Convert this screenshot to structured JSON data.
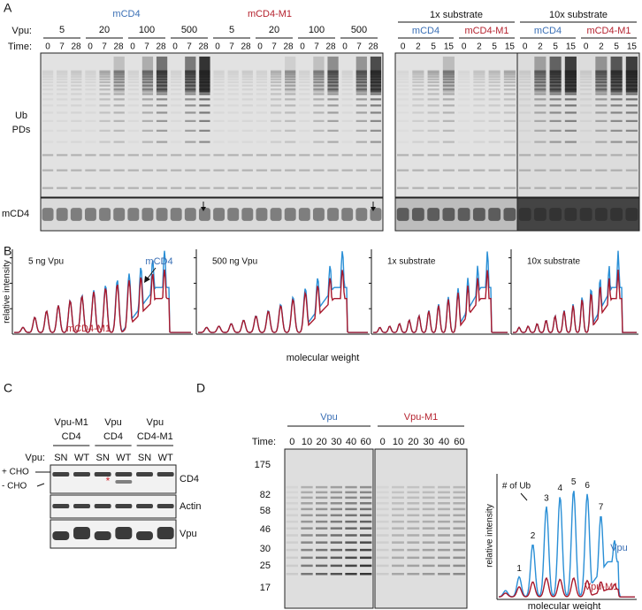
{
  "panel_a": {
    "letter": "A",
    "left": {
      "constructs": [
        {
          "name": "mCD4",
          "color": "#3a6fb5"
        },
        {
          "name": "mCD4-M1",
          "color": "#b5232f"
        }
      ],
      "vpu_label": "Vpu:",
      "time_label": "Time:",
      "groups": [
        {
          "vpu": "5",
          "times": [
            "0",
            "7",
            "28"
          ]
        },
        {
          "vpu": "20",
          "times": [
            "0",
            "7",
            "28"
          ]
        },
        {
          "vpu": "100",
          "times": [
            "0",
            "7",
            "28"
          ]
        },
        {
          "vpu": "500",
          "times": [
            "0",
            "7",
            "28"
          ]
        },
        {
          "vpu": "5",
          "times": [
            "0",
            "7",
            "28"
          ]
        },
        {
          "vpu": "20",
          "times": [
            "0",
            "7",
            "28"
          ]
        },
        {
          "vpu": "100",
          "times": [
            "0",
            "7",
            "28"
          ]
        },
        {
          "vpu": "500",
          "times": [
            "0",
            "7",
            "28"
          ]
        }
      ],
      "blot_label": [
        "Ub",
        "PDs"
      ],
      "loading_label": "mCD4"
    },
    "right": {
      "conditions": [
        {
          "name": "1x substrate",
          "constructs": [
            {
              "name": "mCD4",
              "color": "#3a6fb5",
              "times": [
                "0",
                "2",
                "5",
                "15"
              ]
            },
            {
              "name": "mCD4-M1",
              "color": "#b5232f",
              "times": [
                "0",
                "2",
                "5",
                "15"
              ]
            }
          ]
        },
        {
          "name": "10x substrate",
          "constructs": [
            {
              "name": "mCD4",
              "color": "#3a6fb5",
              "times": [
                "0",
                "2",
                "5",
                "15"
              ]
            },
            {
              "name": "mCD4-M1",
              "color": "#b5232f",
              "times": [
                "0",
                "2",
                "5",
                "15"
              ]
            }
          ]
        }
      ]
    }
  },
  "panel_b": {
    "letter": "B",
    "trace_colors": [
      "#2a8fd6",
      "#a8182c"
    ],
    "plots": [
      {
        "title": "5 ng Vpu",
        "annotations": [
          {
            "text": "mCD4",
            "color": "#3a6fb5"
          },
          {
            "text": "mCD4-M1",
            "color": "#b5232f"
          }
        ]
      },
      {
        "title": "500 ng Vpu"
      },
      {
        "title": "1x substrate"
      },
      {
        "title": "10x substrate"
      }
    ],
    "y_label": "relative intensity",
    "x_label": "molecular weight"
  },
  "panel_c": {
    "letter": "C",
    "columns": [
      {
        "vpu": "Vpu-M1",
        "substrate": "CD4",
        "lanes": [
          "SN",
          "WT"
        ]
      },
      {
        "vpu": "Vpu",
        "substrate": "CD4",
        "lanes": [
          "SN",
          "WT"
        ]
      },
      {
        "vpu": "Vpu",
        "substrate": "CD4-M1",
        "lanes": [
          "SN",
          "WT"
        ]
      }
    ],
    "vpu_label": "Vpu:",
    "glycoforms": [
      "+ CHO",
      "- CHO"
    ],
    "blots": [
      "CD4",
      "Actin",
      "Vpu"
    ],
    "marker": "*"
  },
  "panel_d": {
    "letter": "D",
    "time_label": "Time:",
    "gels": [
      {
        "name": "Vpu",
        "color": "#3a6fb5",
        "times": [
          "0",
          "10",
          "20",
          "30",
          "40",
          "60"
        ]
      },
      {
        "name": "Vpu-M1",
        "color": "#b5232f",
        "times": [
          "0",
          "10",
          "20",
          "30",
          "40",
          "60"
        ]
      }
    ],
    "mw_markers": [
      "175",
      "82",
      "58",
      "46",
      "30",
      "25",
      "17"
    ],
    "plot": {
      "heading": "# of Ub",
      "peaks": [
        "1",
        "2",
        "3",
        "4",
        "5",
        "6",
        "7"
      ],
      "series": [
        {
          "name": "Vpu",
          "color": "#2a8fd6",
          "label_color": "#3a6fb5"
        },
        {
          "name": "Vpu-M1",
          "color": "#a8182c",
          "label_color": "#b5232f"
        }
      ],
      "y_label": "relative intensity",
      "x_label": "molecular weight"
    }
  }
}
